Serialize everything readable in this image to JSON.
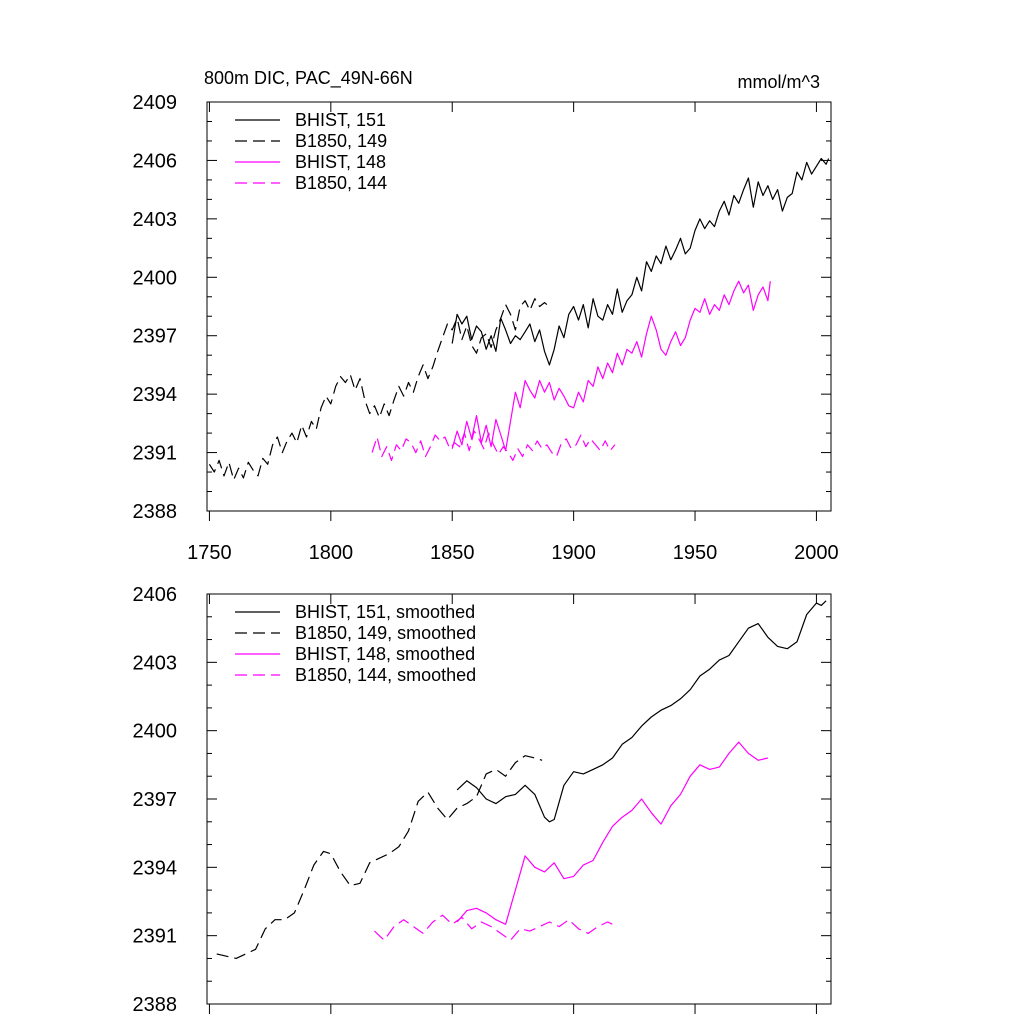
{
  "figure": {
    "background": "#ffffff"
  },
  "styles": {
    "black": "#000000",
    "magenta": "#ff00ff"
  },
  "chart_data": [
    {
      "type": "line",
      "title": "800m DIC, PAC_49N-66N",
      "units": "mmol/m^3",
      "xlim": [
        1749,
        2006
      ],
      "ylim": [
        2388,
        2409
      ],
      "xticks": [
        1750,
        1800,
        1850,
        1900,
        1950,
        2000
      ],
      "xtick_labels": [
        "1750",
        "1800",
        "1850",
        "1900",
        "1950",
        "2000"
      ],
      "yticks": [
        2388,
        2391,
        2394,
        2397,
        2400,
        2403,
        2406,
        2409
      ],
      "ytick_labels": [
        "2388",
        "2391",
        "2394",
        "2397",
        "2400",
        "2403",
        "2406",
        "2409"
      ],
      "legend": "top-left",
      "series": [
        {
          "name": "BHIST, 151",
          "color": "#000000",
          "dash": "solid",
          "x": [
            1850,
            1852,
            1854,
            1856,
            1858,
            1860,
            1862,
            1864,
            1866,
            1868,
            1870,
            1872,
            1874,
            1876,
            1878,
            1880,
            1882,
            1884,
            1886,
            1888,
            1890,
            1892,
            1894,
            1896,
            1898,
            1900,
            1902,
            1904,
            1906,
            1908,
            1910,
            1912,
            1914,
            1916,
            1918,
            1920,
            1922,
            1924,
            1926,
            1928,
            1930,
            1932,
            1934,
            1936,
            1938,
            1940,
            1942,
            1944,
            1946,
            1948,
            1950,
            1952,
            1954,
            1956,
            1958,
            1960,
            1962,
            1964,
            1966,
            1968,
            1970,
            1972,
            1974,
            1976,
            1978,
            1980,
            1982,
            1984,
            1986,
            1988,
            1990,
            1992,
            1994,
            1996,
            1998,
            2000,
            2002,
            2004,
            2005
          ],
          "y": [
            2396.6,
            2398.1,
            2397.6,
            2398.0,
            2396.8,
            2397.5,
            2397.2,
            2396.3,
            2397.0,
            2396.2,
            2397.9,
            2397.3,
            2396.6,
            2397.0,
            2396.8,
            2397.2,
            2397.6,
            2396.7,
            2397.3,
            2396.2,
            2395.5,
            2396.3,
            2397.5,
            2396.9,
            2398.1,
            2398.5,
            2397.8,
            2398.6,
            2397.4,
            2398.9,
            2398.0,
            2397.8,
            2398.6,
            2398.1,
            2399.4,
            2398.2,
            2398.8,
            2399.1,
            2400.0,
            2399.3,
            2400.8,
            2400.3,
            2401.1,
            2400.7,
            2401.6,
            2400.9,
            2401.4,
            2402.0,
            2401.2,
            2401.5,
            2402.4,
            2403.0,
            2402.5,
            2402.9,
            2402.6,
            2403.4,
            2403.9,
            2403.2,
            2404.2,
            2403.8,
            2404.5,
            2405.1,
            2403.6,
            2404.9,
            2404.2,
            2404.7,
            2404.0,
            2404.5,
            2403.4,
            2404.1,
            2404.3,
            2405.4,
            2405.0,
            2405.9,
            2405.3,
            2405.7,
            2406.1,
            2405.8,
            2406.1
          ]
        },
        {
          "name": "B1850, 149",
          "color": "#000000",
          "dash": "dashed",
          "x": [
            1750,
            1752,
            1754,
            1756,
            1758,
            1760,
            1762,
            1764,
            1766,
            1768,
            1770,
            1772,
            1774,
            1776,
            1778,
            1780,
            1782,
            1784,
            1786,
            1788,
            1790,
            1792,
            1794,
            1796,
            1798,
            1800,
            1802,
            1804,
            1806,
            1808,
            1810,
            1812,
            1814,
            1816,
            1818,
            1820,
            1822,
            1824,
            1826,
            1828,
            1830,
            1832,
            1834,
            1836,
            1838,
            1840,
            1842,
            1844,
            1846,
            1848,
            1850,
            1852,
            1854,
            1856,
            1858,
            1860,
            1862,
            1864,
            1866,
            1868,
            1870,
            1872,
            1874,
            1876,
            1878,
            1880,
            1882,
            1884,
            1886,
            1888,
            1889
          ],
          "y": [
            2390.4,
            2390.0,
            2390.6,
            2389.8,
            2390.5,
            2389.6,
            2390.2,
            2389.7,
            2390.5,
            2390.1,
            2389.8,
            2390.7,
            2390.4,
            2391.4,
            2391.8,
            2391.0,
            2391.6,
            2392.0,
            2391.5,
            2392.4,
            2391.8,
            2392.6,
            2392.2,
            2393.3,
            2393.9,
            2393.5,
            2394.4,
            2394.9,
            2394.6,
            2395.0,
            2394.2,
            2394.8,
            2393.7,
            2393.0,
            2393.4,
            2392.8,
            2393.5,
            2392.9,
            2393.7,
            2394.4,
            2393.9,
            2394.6,
            2394.1,
            2394.9,
            2395.5,
            2394.8,
            2395.4,
            2396.2,
            2396.9,
            2397.6,
            2397.3,
            2397.9,
            2396.8,
            2397.5,
            2396.5,
            2396.1,
            2396.9,
            2397.1,
            2396.4,
            2397.3,
            2397.9,
            2398.6,
            2398.1,
            2397.3,
            2398.5,
            2398.8,
            2398.3,
            2398.9,
            2398.5,
            2398.7,
            2398.6
          ]
        },
        {
          "name": "BHIST, 148",
          "color": "#ff00ff",
          "dash": "solid",
          "x": [
            1850,
            1852,
            1854,
            1856,
            1858,
            1860,
            1862,
            1864,
            1866,
            1868,
            1870,
            1872,
            1874,
            1876,
            1878,
            1880,
            1882,
            1884,
            1886,
            1888,
            1890,
            1892,
            1894,
            1896,
            1898,
            1900,
            1902,
            1904,
            1906,
            1908,
            1910,
            1912,
            1914,
            1916,
            1918,
            1920,
            1922,
            1924,
            1926,
            1928,
            1930,
            1932,
            1934,
            1936,
            1938,
            1940,
            1942,
            1944,
            1946,
            1948,
            1950,
            1952,
            1954,
            1956,
            1958,
            1960,
            1962,
            1964,
            1966,
            1968,
            1970,
            1972,
            1974,
            1976,
            1978,
            1980,
            1981
          ],
          "y": [
            2391.2,
            2392.1,
            2391.4,
            2392.6,
            2391.7,
            2392.9,
            2391.5,
            2392.4,
            2391.3,
            2392.7,
            2391.9,
            2391.1,
            2392.6,
            2394.1,
            2393.3,
            2394.7,
            2394.2,
            2393.8,
            2394.7,
            2394.1,
            2394.6,
            2393.7,
            2394.3,
            2393.9,
            2393.4,
            2393.3,
            2394.1,
            2393.6,
            2394.7,
            2394.4,
            2395.4,
            2394.8,
            2395.6,
            2395.1,
            2396.1,
            2395.5,
            2396.3,
            2396.1,
            2396.7,
            2395.9,
            2397.1,
            2398.0,
            2397.3,
            2396.3,
            2396.0,
            2396.7,
            2397.2,
            2396.5,
            2396.9,
            2397.8,
            2398.4,
            2398.2,
            2398.9,
            2398.1,
            2398.6,
            2398.3,
            2399.1,
            2398.6,
            2399.3,
            2399.8,
            2399.2,
            2399.6,
            2398.3,
            2399.1,
            2399.5,
            2398.8,
            2399.8
          ]
        },
        {
          "name": "B1850, 144",
          "color": "#ff00ff",
          "dash": "dashed",
          "x": [
            1817,
            1819,
            1821,
            1823,
            1825,
            1827,
            1829,
            1831,
            1833,
            1835,
            1837,
            1839,
            1841,
            1843,
            1845,
            1847,
            1849,
            1851,
            1853,
            1855,
            1857,
            1859,
            1861,
            1863,
            1865,
            1867,
            1869,
            1871,
            1873,
            1875,
            1877,
            1879,
            1881,
            1883,
            1885,
            1887,
            1889,
            1891,
            1893,
            1895,
            1897,
            1899,
            1901,
            1903,
            1905,
            1907,
            1909,
            1911,
            1913,
            1915,
            1917
          ],
          "y": [
            2391.0,
            2391.8,
            2390.8,
            2391.3,
            2390.6,
            2391.4,
            2391.1,
            2391.7,
            2391.5,
            2391.0,
            2391.6,
            2390.8,
            2391.3,
            2391.9,
            2391.6,
            2391.8,
            2391.2,
            2391.5,
            2391.3,
            2392.0,
            2391.1,
            2392.1,
            2391.7,
            2391.2,
            2392.0,
            2391.4,
            2390.9,
            2391.3,
            2391.0,
            2390.6,
            2391.2,
            2390.8,
            2391.4,
            2391.1,
            2391.6,
            2391.2,
            2391.4,
            2391.0,
            2390.8,
            2391.5,
            2391.7,
            2391.2,
            2391.4,
            2391.9,
            2391.3,
            2391.7,
            2391.4,
            2391.1,
            2391.6,
            2391.1,
            2391.4
          ]
        }
      ]
    },
    {
      "type": "line",
      "title": "",
      "units": "",
      "xlim": [
        1749,
        2006
      ],
      "ylim": [
        2388,
        2406
      ],
      "xticks": [
        1750,
        1800,
        1850,
        1900,
        1950,
        2000
      ],
      "xtick_labels": [
        "",
        "",
        "",
        "",
        "",
        ""
      ],
      "yticks": [
        2388,
        2391,
        2394,
        2397,
        2400,
        2403,
        2406
      ],
      "ytick_labels": [
        "2388",
        "2391",
        "2394",
        "2397",
        "2400",
        "2403",
        "2406"
      ],
      "legend": "top-left",
      "series": [
        {
          "name": "BHIST, 151, smoothed",
          "color": "#000000",
          "dash": "solid",
          "x": [
            1852,
            1856,
            1860,
            1864,
            1868,
            1872,
            1876,
            1880,
            1884,
            1888,
            1890,
            1892,
            1896,
            1900,
            1904,
            1908,
            1912,
            1916,
            1920,
            1924,
            1928,
            1932,
            1936,
            1940,
            1944,
            1948,
            1952,
            1956,
            1960,
            1964,
            1968,
            1972,
            1976,
            1980,
            1984,
            1988,
            1992,
            1996,
            2000,
            2002,
            2004
          ],
          "y": [
            2397.4,
            2397.8,
            2397.5,
            2397.0,
            2396.8,
            2397.1,
            2397.2,
            2397.6,
            2397.2,
            2396.2,
            2396.0,
            2396.1,
            2397.6,
            2398.2,
            2398.1,
            2398.3,
            2398.5,
            2398.8,
            2399.4,
            2399.7,
            2400.2,
            2400.6,
            2400.9,
            2401.1,
            2401.4,
            2401.8,
            2402.4,
            2402.7,
            2403.1,
            2403.3,
            2403.9,
            2404.5,
            2404.7,
            2404.1,
            2403.7,
            2403.6,
            2403.9,
            2405.1,
            2405.6,
            2405.5,
            2405.7
          ]
        },
        {
          "name": "B1850, 149, smoothed",
          "color": "#000000",
          "dash": "dashed",
          "x": [
            1753,
            1757,
            1761,
            1765,
            1769,
            1773,
            1777,
            1781,
            1785,
            1789,
            1793,
            1797,
            1800,
            1804,
            1808,
            1812,
            1816,
            1820,
            1824,
            1828,
            1832,
            1836,
            1840,
            1844,
            1848,
            1852,
            1856,
            1860,
            1864,
            1868,
            1872,
            1876,
            1880,
            1884,
            1887
          ],
          "y": [
            2390.2,
            2390.1,
            2390.0,
            2390.2,
            2390.4,
            2391.3,
            2391.7,
            2391.7,
            2392.0,
            2393.0,
            2394.1,
            2394.7,
            2394.6,
            2393.8,
            2393.2,
            2393.3,
            2394.2,
            2394.4,
            2394.6,
            2394.9,
            2395.6,
            2396.9,
            2397.3,
            2396.6,
            2396.1,
            2396.6,
            2396.8,
            2397.1,
            2398.1,
            2398.3,
            2398.0,
            2398.6,
            2398.9,
            2398.8,
            2398.7
          ]
        },
        {
          "name": "BHIST, 148, smoothed",
          "color": "#ff00ff",
          "dash": "solid",
          "x": [
            1852,
            1856,
            1860,
            1864,
            1868,
            1872,
            1876,
            1880,
            1884,
            1888,
            1892,
            1896,
            1900,
            1904,
            1908,
            1912,
            1916,
            1920,
            1924,
            1928,
            1932,
            1936,
            1940,
            1944,
            1948,
            1952,
            1956,
            1960,
            1964,
            1968,
            1972,
            1976,
            1980
          ],
          "y": [
            2391.6,
            2392.1,
            2392.2,
            2392.0,
            2391.7,
            2391.5,
            2393.0,
            2394.5,
            2394.0,
            2393.8,
            2394.2,
            2393.5,
            2393.6,
            2394.1,
            2394.3,
            2395.1,
            2395.8,
            2396.2,
            2396.5,
            2397.0,
            2396.4,
            2395.9,
            2396.7,
            2397.2,
            2398.0,
            2398.5,
            2398.3,
            2398.4,
            2399.0,
            2399.5,
            2399.0,
            2398.7,
            2398.8
          ]
        },
        {
          "name": "B1850, 144, smoothed",
          "color": "#ff00ff",
          "dash": "dashed",
          "x": [
            1818,
            1822,
            1826,
            1830,
            1834,
            1838,
            1842,
            1846,
            1850,
            1854,
            1858,
            1862,
            1866,
            1870,
            1874,
            1878,
            1882,
            1886,
            1890,
            1894,
            1898,
            1902,
            1906,
            1910,
            1914,
            1916
          ],
          "y": [
            2391.2,
            2390.8,
            2391.4,
            2391.7,
            2391.4,
            2391.1,
            2391.6,
            2391.9,
            2391.5,
            2391.8,
            2391.3,
            2391.6,
            2391.4,
            2391.1,
            2390.8,
            2391.3,
            2391.2,
            2391.4,
            2391.6,
            2391.4,
            2391.7,
            2391.3,
            2391.1,
            2391.4,
            2391.6,
            2391.5
          ]
        }
      ]
    }
  ]
}
